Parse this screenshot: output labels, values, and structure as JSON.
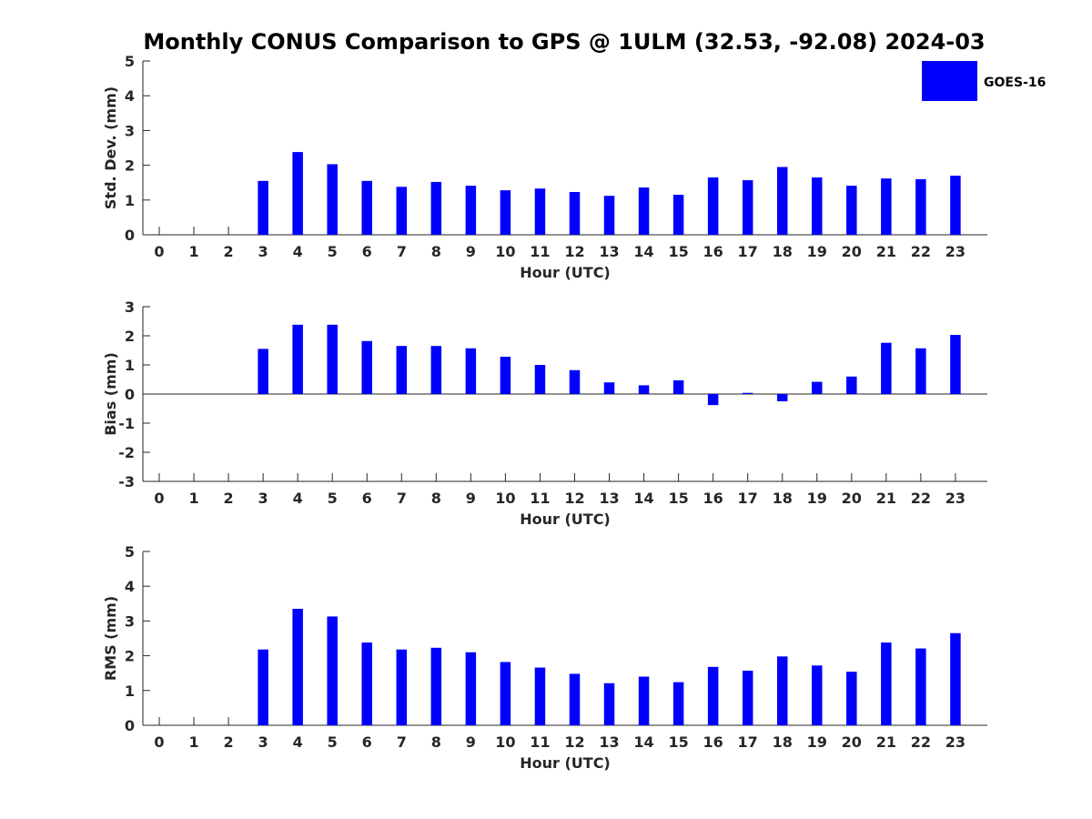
{
  "title": "Monthly CONUS Comparison to GPS @ 1ULM (32.53, -92.08) 2024-03",
  "legend": {
    "label": "GOES-16",
    "color": "#0000ff",
    "placement": "top-right"
  },
  "colors": {
    "bar": "#0000ff",
    "axis": "#262626",
    "text": "#000000"
  },
  "chart_data": [
    {
      "type": "bar",
      "xlabel": "Hour (UTC)",
      "ylabel": "Std. Dev. (mm)",
      "ylim": [
        0,
        5
      ],
      "yticks": [
        0,
        1,
        2,
        3,
        4,
        5
      ],
      "grid": false,
      "categories": [
        "0",
        "1",
        "2",
        "3",
        "4",
        "5",
        "6",
        "7",
        "8",
        "9",
        "10",
        "11",
        "12",
        "13",
        "14",
        "15",
        "16",
        "17",
        "18",
        "19",
        "20",
        "21",
        "22",
        "23"
      ],
      "series": [
        {
          "name": "GOES-16",
          "values": [
            null,
            null,
            null,
            1.55,
            2.38,
            2.03,
            1.55,
            1.38,
            1.52,
            1.41,
            1.28,
            1.33,
            1.23,
            1.12,
            1.36,
            1.15,
            1.65,
            1.57,
            1.95,
            1.65,
            1.41,
            1.62,
            1.6,
            1.7
          ]
        }
      ]
    },
    {
      "type": "bar",
      "xlabel": "Hour (UTC)",
      "ylabel": "Bias (mm)",
      "ylim": [
        -3,
        3
      ],
      "yticks": [
        -3,
        -2,
        -1,
        0,
        1,
        2,
        3
      ],
      "grid": false,
      "categories": [
        "0",
        "1",
        "2",
        "3",
        "4",
        "5",
        "6",
        "7",
        "8",
        "9",
        "10",
        "11",
        "12",
        "13",
        "14",
        "15",
        "16",
        "17",
        "18",
        "19",
        "20",
        "21",
        "22",
        "23"
      ],
      "series": [
        {
          "name": "GOES-16",
          "values": [
            null,
            null,
            null,
            1.55,
            2.38,
            2.38,
            1.82,
            1.65,
            1.65,
            1.57,
            1.28,
            1.0,
            0.82,
            0.4,
            0.3,
            0.47,
            -0.38,
            0.04,
            -0.25,
            0.42,
            0.6,
            1.76,
            1.57,
            2.03
          ]
        }
      ]
    },
    {
      "type": "bar",
      "xlabel": "Hour (UTC)",
      "ylabel": "RMS (mm)",
      "ylim": [
        0,
        5
      ],
      "yticks": [
        0,
        1,
        2,
        3,
        4,
        5
      ],
      "grid": false,
      "categories": [
        "0",
        "1",
        "2",
        "3",
        "4",
        "5",
        "6",
        "7",
        "8",
        "9",
        "10",
        "11",
        "12",
        "13",
        "14",
        "15",
        "16",
        "17",
        "18",
        "19",
        "20",
        "21",
        "22",
        "23"
      ],
      "series": [
        {
          "name": "GOES-16",
          "values": [
            null,
            null,
            null,
            2.18,
            3.35,
            3.13,
            2.38,
            2.18,
            2.23,
            2.1,
            1.82,
            1.66,
            1.48,
            1.21,
            1.4,
            1.24,
            1.68,
            1.57,
            1.98,
            1.72,
            1.54,
            2.38,
            2.21,
            2.65
          ]
        }
      ]
    }
  ]
}
